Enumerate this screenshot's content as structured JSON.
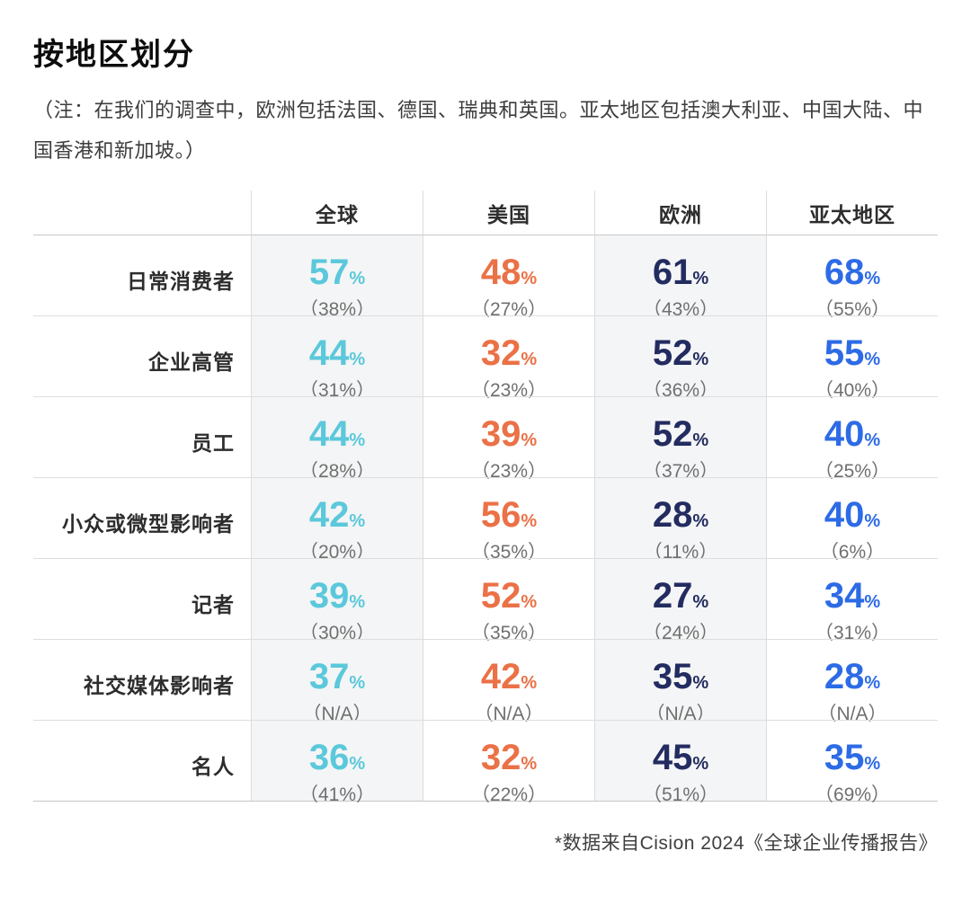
{
  "header": {
    "title": "按地区划分",
    "note": "（注：在我们的调查中，欧洲包括法国、德国、瑞典和英国。亚太地区包括澳大利亚、中国大陆、中国香港和新加坡。）"
  },
  "footnote": "*数据来自Cision 2024《全球企业传播报告》",
  "colors": {
    "global_accent": "#5BC8DB",
    "us_accent": "#EB7146",
    "europe_accent": "#232C60",
    "apac_accent": "#2D6BE6",
    "sub_value_text": "#6F6F6F",
    "shaded_column_bg": "#F4F5F6"
  },
  "chart_data": {
    "type": "table",
    "title": "按地区划分",
    "unit": "%",
    "columns": [
      {
        "key": "global",
        "label": "全球",
        "color": "#5BC8DB",
        "shaded": true
      },
      {
        "key": "us",
        "label": "美国",
        "color": "#EB7146",
        "shaded": false
      },
      {
        "key": "europe",
        "label": "欧洲",
        "color": "#232C60",
        "shaded": true
      },
      {
        "key": "apac",
        "label": "亚太地区",
        "color": "#2D6BE6",
        "shaded": false
      }
    ],
    "rows": [
      {
        "label": "日常消费者",
        "values": [
          "57",
          "48",
          "61",
          "68"
        ],
        "sub_values": [
          "（38%）",
          "（27%）",
          "（43%）",
          "（55%）"
        ]
      },
      {
        "label": "企业高管",
        "values": [
          "44",
          "32",
          "52",
          "55"
        ],
        "sub_values": [
          "（31%）",
          "（23%）",
          "（36%）",
          "（40%）"
        ]
      },
      {
        "label": "员工",
        "values": [
          "44",
          "39",
          "52",
          "40"
        ],
        "sub_values": [
          "（28%）",
          "（23%）",
          "（37%）",
          "（25%）"
        ]
      },
      {
        "label": "小众或微型影响者",
        "values": [
          "42",
          "56",
          "28",
          "40"
        ],
        "sub_values": [
          "（20%）",
          "（35%）",
          "（11%）",
          "（6%）"
        ]
      },
      {
        "label": "记者",
        "values": [
          "39",
          "52",
          "27",
          "34"
        ],
        "sub_values": [
          "（30%）",
          "（35%）",
          "（24%）",
          "（31%）"
        ]
      },
      {
        "label": "社交媒体影响者",
        "values": [
          "37",
          "42",
          "35",
          "28"
        ],
        "sub_values": [
          "（N/A）",
          "（N/A）",
          "（N/A）",
          "（N/A）"
        ]
      },
      {
        "label": "名人",
        "values": [
          "36",
          "32",
          "45",
          "35"
        ],
        "sub_values": [
          "（41%）",
          "（22%）",
          "（51%）",
          "（69%）"
        ]
      }
    ]
  }
}
